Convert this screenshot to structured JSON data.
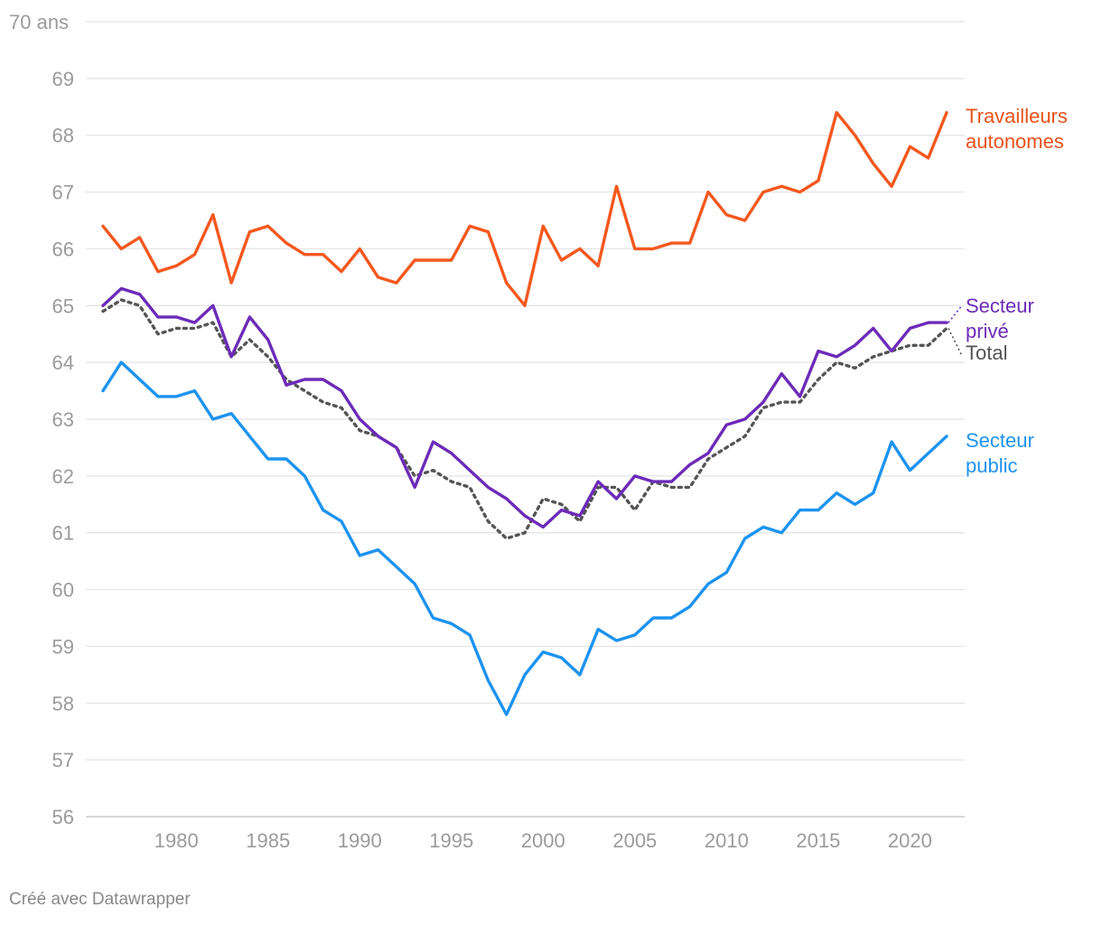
{
  "footer": {
    "credit": "Créé avec Datawrapper"
  },
  "chart_data": {
    "type": "line",
    "title": "",
    "xlabel": "",
    "ylabel": "",
    "ylim": [
      56,
      70
    ],
    "xlim": [
      1976,
      2022
    ],
    "y_ticks": [
      {
        "value": 70,
        "label": "70 ans"
      },
      {
        "value": 69,
        "label": "69"
      },
      {
        "value": 68,
        "label": "68"
      },
      {
        "value": 67,
        "label": "67"
      },
      {
        "value": 66,
        "label": "66"
      },
      {
        "value": 65,
        "label": "65"
      },
      {
        "value": 64,
        "label": "64"
      },
      {
        "value": 63,
        "label": "63"
      },
      {
        "value": 62,
        "label": "62"
      },
      {
        "value": 61,
        "label": "61"
      },
      {
        "value": 60,
        "label": "60"
      },
      {
        "value": 59,
        "label": "59"
      },
      {
        "value": 58,
        "label": "58"
      },
      {
        "value": 57,
        "label": "57"
      },
      {
        "value": 56,
        "label": "56"
      }
    ],
    "x_ticks": [
      {
        "value": 1980,
        "label": "1980"
      },
      {
        "value": 1985,
        "label": "1985"
      },
      {
        "value": 1990,
        "label": "1990"
      },
      {
        "value": 1995,
        "label": "1995"
      },
      {
        "value": 2000,
        "label": "2000"
      },
      {
        "value": 2005,
        "label": "2005"
      },
      {
        "value": 2010,
        "label": "2010"
      },
      {
        "value": 2015,
        "label": "2015"
      },
      {
        "value": 2020,
        "label": "2020"
      }
    ],
    "grid": "horizontal",
    "legend": "direct labels at right end of lines",
    "x": [
      1976,
      1977,
      1978,
      1979,
      1980,
      1981,
      1982,
      1983,
      1984,
      1985,
      1986,
      1987,
      1988,
      1989,
      1990,
      1991,
      1992,
      1993,
      1994,
      1995,
      1996,
      1997,
      1998,
      1999,
      2000,
      2001,
      2002,
      2003,
      2004,
      2005,
      2006,
      2007,
      2008,
      2009,
      2010,
      2011,
      2012,
      2013,
      2014,
      2015,
      2016,
      2017,
      2018,
      2019,
      2020,
      2021,
      2022
    ],
    "series": [
      {
        "label_lines": [
          "Travailleurs",
          "autonomes"
        ],
        "color": "#f4581e",
        "style": "solid",
        "values": [
          66.4,
          66.0,
          66.2,
          65.6,
          65.7,
          65.9,
          66.6,
          65.4,
          66.3,
          66.4,
          66.1,
          65.9,
          65.9,
          65.6,
          66.0,
          65.5,
          65.4,
          65.8,
          65.8,
          65.8,
          66.4,
          66.3,
          65.4,
          65.0,
          66.4,
          65.8,
          66.0,
          65.7,
          67.1,
          66.0,
          66.0,
          66.1,
          66.1,
          67.0,
          66.6,
          66.5,
          67.0,
          67.1,
          67.0,
          67.2,
          68.4,
          68.0,
          67.5,
          67.1,
          67.8,
          67.6,
          68.4
        ]
      },
      {
        "label_lines": [
          "Secteur",
          "privé"
        ],
        "color": "#6c2bb8",
        "style": "solid",
        "values": [
          65.0,
          65.3,
          65.2,
          64.8,
          64.8,
          64.7,
          65.0,
          64.1,
          64.8,
          64.4,
          63.6,
          63.7,
          63.7,
          63.5,
          63.0,
          62.7,
          62.5,
          61.8,
          62.6,
          62.4,
          62.1,
          61.8,
          61.6,
          61.3,
          61.1,
          61.4,
          61.3,
          61.9,
          61.6,
          62.0,
          61.9,
          61.9,
          62.2,
          62.4,
          62.9,
          63.0,
          63.3,
          63.8,
          63.4,
          64.2,
          64.1,
          64.3,
          64.6,
          64.2,
          64.6,
          64.7,
          64.7
        ]
      },
      {
        "label_lines": [
          "Total"
        ],
        "color": "#555555",
        "style": "dotted",
        "values": [
          64.9,
          65.1,
          65.0,
          64.5,
          64.6,
          64.6,
          64.7,
          64.1,
          64.4,
          64.1,
          63.7,
          63.5,
          63.3,
          63.2,
          62.8,
          62.7,
          62.5,
          62.0,
          62.1,
          61.9,
          61.8,
          61.2,
          60.9,
          61.0,
          61.6,
          61.5,
          61.2,
          61.8,
          61.8,
          61.4,
          61.9,
          61.8,
          61.8,
          62.3,
          62.5,
          62.7,
          63.2,
          63.3,
          63.3,
          63.7,
          64.0,
          63.9,
          64.1,
          64.2,
          64.3,
          64.3,
          64.6
        ]
      },
      {
        "label_lines": [
          "Secteur",
          "public"
        ],
        "color": "#1d93f0",
        "style": "solid",
        "values": [
          63.5,
          64.0,
          63.7,
          63.4,
          63.4,
          63.5,
          63.0,
          63.1,
          62.7,
          62.3,
          62.3,
          62.0,
          61.4,
          61.2,
          60.6,
          60.7,
          60.4,
          60.1,
          59.5,
          59.4,
          59.2,
          58.4,
          57.8,
          58.5,
          58.9,
          58.8,
          58.5,
          59.3,
          59.1,
          59.2,
          59.5,
          59.5,
          59.7,
          60.1,
          60.3,
          60.9,
          61.1,
          61.0,
          61.4,
          61.4,
          61.7,
          61.5,
          61.7,
          62.6,
          62.1,
          62.4,
          62.7
        ]
      }
    ]
  }
}
